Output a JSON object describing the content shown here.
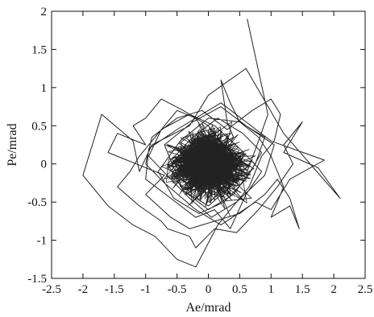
{
  "chart_data": {
    "type": "line",
    "xlabel": "Ae/mrad",
    "ylabel": "Pe/mrad",
    "xlim": [
      -2.5,
      2.5
    ],
    "ylim": [
      -1.5,
      2
    ],
    "x_ticks": [
      -2.5,
      -2,
      -1.5,
      -1,
      -0.5,
      0,
      0.5,
      1,
      1.5,
      2,
      2.5
    ],
    "y_ticks": [
      -1.5,
      -1,
      -0.5,
      0,
      0.5,
      1,
      1.5,
      2
    ],
    "x_tick_labels": [
      "-2.5",
      "-2",
      "-1.5",
      "-1",
      "-0.5",
      "0",
      "0.5",
      "1",
      "1.5",
      "2",
      "2.5"
    ],
    "y_tick_labels": [
      "-1.5",
      "-1",
      "-0.5",
      "0",
      "0.5",
      "1",
      "1.5",
      "2"
    ],
    "grid": false,
    "legend": "none",
    "color": "#222222",
    "series": [
      {
        "x": [
          0.62,
          0.95,
          0.8,
          0.62,
          0.3,
          0.0,
          -0.4,
          -0.75,
          -1.0,
          -1.2,
          -1.0,
          -1.45,
          -1.6,
          -1.15,
          -0.7,
          -1.0,
          -0.6,
          -0.3,
          0.1,
          0.5,
          0.9,
          1.1,
          1.3,
          1.45,
          1.3,
          1.0,
          1.2,
          1.0,
          0.8,
          0.5,
          0.35,
          0.2,
          0.3,
          0.4,
          0.1,
          -0.2,
          -0.5,
          -0.8,
          -1.1,
          -1.25,
          -1.45,
          -1.1,
          -0.75,
          -0.65,
          -0.3,
          -0.2,
          0.1,
          0.45,
          0.8,
          1.1,
          1.35,
          1.2,
          1.5,
          1.2,
          1.75,
          2.1,
          1.2,
          0.6,
          0.0,
          -0.3,
          -0.9,
          -1.1,
          -1.2,
          -1.7,
          -2.0,
          -1.6,
          -1.2,
          -0.85,
          -0.5,
          -0.2,
          0.15,
          0.4,
          0.65,
          0.85,
          1.05,
          1.15,
          1.0,
          0.7,
          0.3,
          -0.1,
          -0.5,
          -0.9,
          -1.0,
          -0.7,
          -0.2,
          0.2,
          0.75,
          1.0,
          1.3,
          1.85,
          1.0,
          0.6,
          0.2,
          -0.2,
          -0.5,
          -0.95,
          -1.0,
          -0.6,
          -0.2,
          0.1,
          0.35,
          0.6,
          0.85,
          0.5,
          0.1,
          -0.3,
          -0.75,
          -0.95,
          -0.6,
          -0.3,
          0.05,
          0.45,
          0.9,
          1.05,
          0.6,
          0.2,
          -0.25,
          -0.7,
          -0.4,
          0.0,
          0.4,
          0.75,
          0.9,
          0.5,
          0.0,
          -0.45,
          -0.8,
          -0.55,
          -0.15,
          0.25,
          0.6,
          0.85,
          0.55,
          0.15,
          -0.25,
          -0.65,
          -0.4,
          0.0,
          0.35,
          0.7
        ],
        "y": [
          1.9,
          0.65,
          0.3,
          -0.1,
          0.2,
          0.5,
          0.7,
          0.85,
          0.6,
          0.5,
          0.25,
          0.4,
          0.15,
          0.0,
          -0.15,
          -0.4,
          -0.7,
          -0.85,
          -0.75,
          -0.65,
          -0.4,
          -0.2,
          -0.45,
          -0.85,
          -0.55,
          -0.7,
          -0.3,
          0.1,
          0.35,
          0.55,
          0.8,
          1.1,
          0.55,
          0.35,
          0.2,
          0.6,
          0.7,
          0.4,
          0.1,
          -0.1,
          -0.3,
          -0.55,
          -0.75,
          -0.85,
          -0.95,
          -1.1,
          -0.85,
          -0.9,
          -0.6,
          -0.3,
          0.0,
          0.25,
          0.55,
          0.15,
          -0.05,
          -0.45,
          0.4,
          1.25,
          0.9,
          0.5,
          0.25,
          -0.1,
          0.3,
          0.65,
          -0.15,
          -0.55,
          -0.8,
          -0.95,
          -1.25,
          -1.35,
          -0.8,
          -0.55,
          -0.3,
          0.1,
          0.3,
          0.65,
          0.85,
          0.7,
          0.45,
          0.7,
          0.6,
          0.35,
          0.0,
          -0.25,
          -0.6,
          -0.8,
          -0.5,
          -0.6,
          -0.2,
          0.05,
          0.3,
          0.55,
          0.8,
          0.6,
          0.45,
          0.2,
          -0.2,
          -0.45,
          -0.7,
          -0.6,
          -0.85,
          -0.4,
          -0.1,
          0.2,
          0.5,
          0.65,
          0.45,
          0.1,
          -0.2,
          -0.45,
          -0.7,
          -0.5,
          -0.15,
          0.25,
          0.5,
          0.75,
          0.55,
          0.25,
          -0.35,
          -0.6,
          -0.4,
          0.0,
          0.35,
          0.55,
          0.6,
          0.3,
          -0.1,
          -0.45,
          -0.65,
          -0.5,
          -0.2,
          0.15,
          0.4,
          0.6,
          0.35,
          0.0,
          -0.35,
          -0.55,
          -0.3,
          0.05
        ]
      }
    ]
  }
}
